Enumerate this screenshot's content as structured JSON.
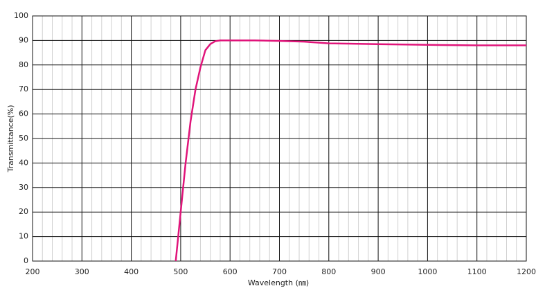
{
  "chart_data": {
    "type": "line",
    "x_label": "Wavelength (㎚)",
    "y_label": "Transmittance(%)",
    "xlim": [
      200,
      1200
    ],
    "xticks": [
      200,
      300,
      400,
      500,
      600,
      700,
      800,
      900,
      1000,
      1100,
      1200
    ],
    "ylim": [
      0,
      100
    ],
    "yticks": [
      0,
      10,
      20,
      30,
      40,
      50,
      60,
      70,
      80,
      90,
      100
    ],
    "grid": true,
    "series": [
      {
        "color": "#e0147a",
        "x": [
          490,
          500,
          510,
          520,
          530,
          540,
          550,
          560,
          570,
          580,
          600,
          650,
          700,
          750,
          800,
          900,
          1000,
          1100,
          1200
        ],
        "values": [
          0,
          20,
          40,
          57,
          70,
          79,
          86,
          88.5,
          89.7,
          90,
          90,
          90,
          89.8,
          89.5,
          88.8,
          88.5,
          88.2,
          88,
          88
        ]
      }
    ]
  }
}
